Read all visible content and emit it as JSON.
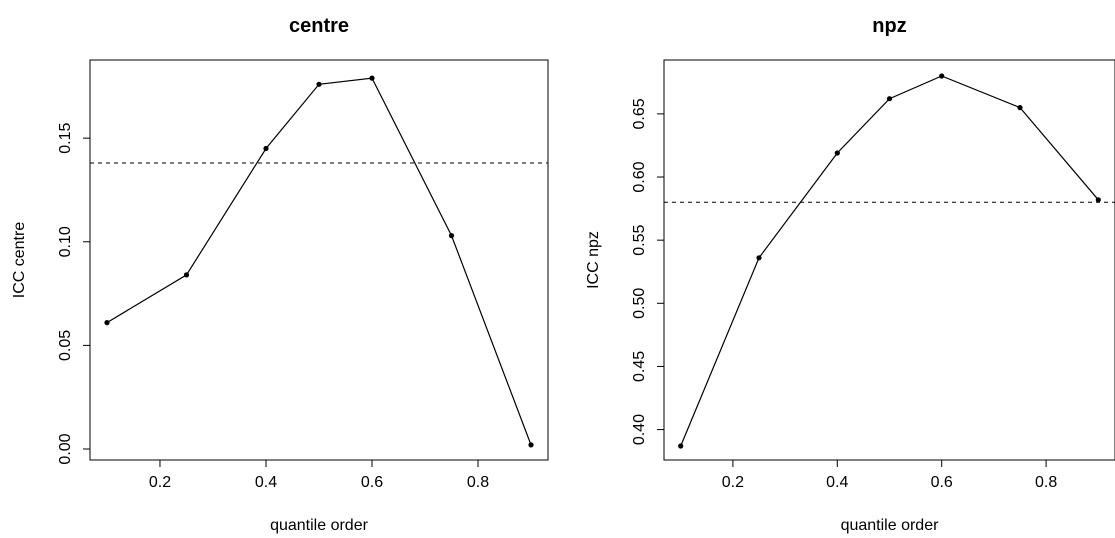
{
  "chart_data": [
    {
      "type": "line",
      "title": "centre",
      "xlabel": "quantile order",
      "ylabel": "ICC centre",
      "xlim": [
        0.1,
        0.9
      ],
      "ylim": [
        0.0,
        0.18
      ],
      "x": [
        0.1,
        0.25,
        0.4,
        0.5,
        0.6,
        0.75,
        0.9
      ],
      "series": [
        {
          "values": [
            0.061,
            0.084,
            0.145,
            0.176,
            0.179,
            0.103,
            0.002
          ]
        }
      ],
      "reference_line": {
        "y": 0.138,
        "style": "dashed"
      },
      "xticks": [
        0.2,
        0.4,
        0.6,
        0.8
      ],
      "yticks": [
        0.0,
        0.05,
        0.1,
        0.15
      ],
      "xtick_labels": [
        "0.2",
        "0.4",
        "0.6",
        "0.8"
      ],
      "ytick_labels": [
        "0.00",
        "0.05",
        "0.10",
        "0.15"
      ],
      "grid": false,
      "legend": "none",
      "color": "#000000"
    },
    {
      "type": "line",
      "title": "npz",
      "xlabel": "quantile order",
      "ylabel": "ICC npz",
      "xlim": [
        0.1,
        0.9
      ],
      "ylim": [
        0.387,
        0.68
      ],
      "x": [
        0.1,
        0.25,
        0.4,
        0.5,
        0.6,
        0.75,
        0.9
      ],
      "series": [
        {
          "values": [
            0.387,
            0.536,
            0.619,
            0.662,
            0.68,
            0.655,
            0.582
          ]
        }
      ],
      "reference_line": {
        "y": 0.58,
        "style": "dashed"
      },
      "xticks": [
        0.2,
        0.4,
        0.6,
        0.8
      ],
      "yticks": [
        0.4,
        0.45,
        0.5,
        0.55,
        0.6,
        0.65
      ],
      "xtick_labels": [
        "0.2",
        "0.4",
        "0.6",
        "0.8"
      ],
      "ytick_labels": [
        "0.40",
        "0.45",
        "0.50",
        "0.55",
        "0.60",
        "0.65"
      ],
      "grid": false,
      "legend": "none",
      "color": "#000000"
    }
  ]
}
